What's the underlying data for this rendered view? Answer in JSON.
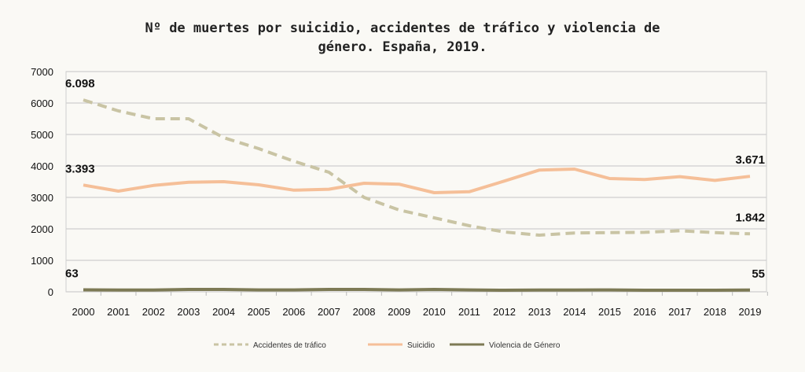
{
  "chart_data": {
    "type": "line",
    "title": "Nº de muertes por suicidio, accidentes de tráfico y violencia de\ngénero. España, 2019.",
    "xlabel": "",
    "ylabel": "",
    "ylim": [
      0,
      7000
    ],
    "yticks": [
      "0",
      "1000",
      "2000",
      "3000",
      "4000",
      "5000",
      "6000",
      "7000"
    ],
    "grid": true,
    "legend_position": "bottom",
    "x": [
      "2000",
      "2001",
      "2002",
      "2003",
      "2004",
      "2005",
      "2006",
      "2007",
      "2008",
      "2009",
      "2010",
      "2011",
      "2012",
      "2013",
      "2014",
      "2015",
      "2016",
      "2017",
      "2018",
      "2019"
    ],
    "series": [
      {
        "name": "Accidentes de tráfico",
        "color": "#c9c4a4",
        "dash": true,
        "values": [
          6098,
          5750,
          5500,
          5500,
          4900,
          4550,
          4150,
          3800,
          3000,
          2600,
          2350,
          2100,
          1900,
          1800,
          1870,
          1880,
          1890,
          1940,
          1880,
          1842
        ],
        "labels": {
          "first": "6.098",
          "last": "1.842"
        }
      },
      {
        "name": "Suicidio",
        "color": "#f5bf98",
        "dash": false,
        "values": [
          3393,
          3200,
          3380,
          3480,
          3500,
          3400,
          3230,
          3260,
          3450,
          3420,
          3150,
          3180,
          3520,
          3870,
          3900,
          3600,
          3570,
          3660,
          3540,
          3671
        ],
        "labels": {
          "first": "3.393",
          "last": "3.671"
        }
      },
      {
        "name": "Violencia de Género",
        "color": "#7d7a55",
        "dash": false,
        "values": [
          63,
          55,
          55,
          75,
          75,
          60,
          60,
          75,
          75,
          60,
          75,
          60,
          50,
          55,
          55,
          60,
          50,
          50,
          50,
          55
        ],
        "labels": {
          "first": "63",
          "last": "55"
        }
      }
    ]
  }
}
